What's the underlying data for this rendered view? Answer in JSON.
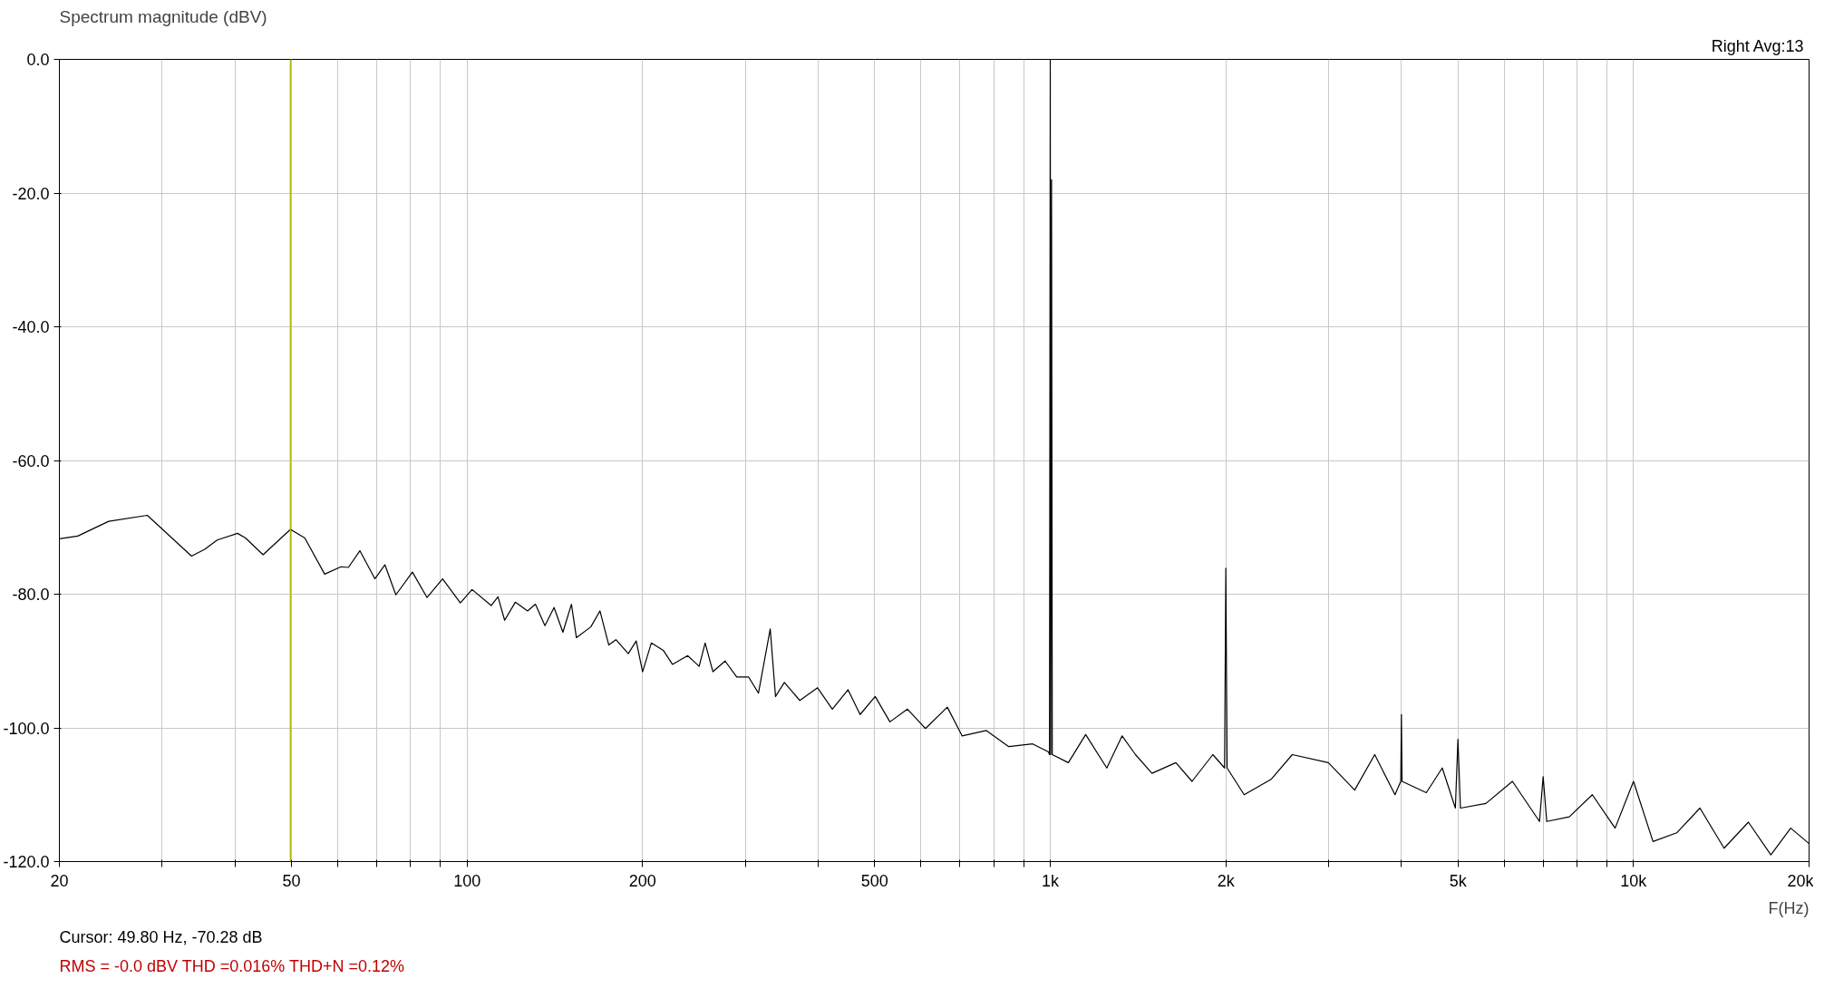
{
  "chart_data": {
    "type": "line",
    "title": "Spectrum magnitude (dBV)",
    "xlabel": "F(Hz)",
    "annotations": [
      "Right  Avg:13",
      "Cursor: 49.80 Hz, -70.28 dB",
      "RMS =   -0.0 dBV  THD =0.016%  THD+N =0.12%"
    ],
    "log": "x",
    "grid": true,
    "marker": "none",
    "line_style": "solid",
    "xlim": [
      20,
      20000
    ],
    "ylim": [
      -120,
      0
    ],
    "xticks": [
      20,
      {
        "value": 30,
        "label": null
      },
      {
        "value": 40,
        "label": null
      },
      50,
      {
        "value": 60,
        "label": null
      },
      {
        "value": 70,
        "label": null
      },
      {
        "value": 80,
        "label": null
      },
      {
        "value": 90,
        "label": null
      },
      100,
      200,
      {
        "value": 300,
        "label": null
      },
      {
        "value": 400,
        "label": null
      },
      500,
      {
        "value": 600,
        "label": null
      },
      {
        "value": 700,
        "label": null
      },
      {
        "value": 800,
        "label": null
      },
      {
        "value": 900,
        "label": null
      },
      {
        "value": 1000,
        "label": "1k"
      },
      {
        "value": 2000,
        "label": "2k"
      },
      {
        "value": 3000,
        "label": null
      },
      {
        "value": 4000,
        "label": null
      },
      {
        "value": 5000,
        "label": "5k"
      },
      {
        "value": 6000,
        "label": null
      },
      {
        "value": 7000,
        "label": null
      },
      {
        "value": 8000,
        "label": null
      },
      {
        "value": 9000,
        "label": null
      },
      {
        "value": 10000,
        "label": "10k"
      },
      {
        "value": 20000,
        "label": "20k"
      }
    ],
    "yticks": [
      {
        "value": 0,
        "label": "0.0"
      },
      {
        "value": -20,
        "label": "-20.0"
      },
      {
        "value": -40,
        "label": "-40.0"
      },
      {
        "value": -60,
        "label": "-60.0"
      },
      {
        "value": -80,
        "label": "-80.0"
      },
      {
        "value": -100,
        "label": "-100.0"
      },
      {
        "value": -120,
        "label": "-120.0"
      }
    ],
    "ref_lines": [
      {
        "axis": "x",
        "value": 49.8,
        "label": null,
        "color": "#b5b800"
      }
    ],
    "series": [
      {
        "color": "#000000",
        "x": [
          20,
          21.5,
          24.3,
          28.3,
          33.7,
          35.5,
          37.3,
          40.4,
          41.7,
          44.7,
          49.8,
          52.7,
          57,
          60.8,
          62.6,
          65.5,
          69.5,
          72.3,
          75.5,
          80.6,
          85.4,
          90.8,
          97.4,
          102,
          110,
          113,
          116,
          121,
          127,
          131,
          136,
          141,
          146,
          151,
          154,
          163,
          169,
          175,
          180,
          189,
          195,
          200,
          207,
          217,
          225,
          239,
          250,
          256,
          264,
          277,
          290,
          304,
          316,
          331,
          338,
          350,
          372,
          399,
          423,
          450,
          472,
          501,
          531,
          569,
          611,
          666,
          706,
          777,
          849,
          933,
          993,
          997,
          1000,
          1002,
          1005,
          1008,
          1074,
          1150,
          1250,
          1328,
          1400,
          1494,
          1642,
          1750,
          1900,
          1990,
          2000,
          2010,
          2150,
          2391,
          2600,
          2998,
          3326,
          3600,
          3900,
          3990,
          4000,
          4010,
          4413,
          4700,
          4950,
          5000,
          5050,
          5584,
          6200,
          6900,
          7000,
          7100,
          7761,
          8500,
          9300,
          10000,
          10800,
          11860,
          13000,
          14300,
          15740,
          17200,
          18600,
          20000
        ],
        "values": [
          -71.7,
          -71.3,
          -69.1,
          -68.2,
          -74.3,
          -73.3,
          -71.9,
          -70.9,
          -71.6,
          -74.1,
          -70.3,
          -71.6,
          -77,
          -75.9,
          -76,
          -73.5,
          -77.7,
          -75.6,
          -80.1,
          -76.7,
          -80.5,
          -77.7,
          -81.3,
          -79.3,
          -81.7,
          -80.4,
          -83.9,
          -81.2,
          -82.5,
          -81.5,
          -84.7,
          -82,
          -85.7,
          -81.5,
          -86.5,
          -84.9,
          -82.5,
          -87.6,
          -86.8,
          -88.9,
          -87,
          -91.6,
          -87.3,
          -88.4,
          -90.5,
          -89.2,
          -90.8,
          -87.3,
          -91.6,
          -90,
          -92.4,
          -92.4,
          -94.8,
          -85.2,
          -95.3,
          -93.2,
          -95.9,
          -94,
          -97.2,
          -94.3,
          -98,
          -95.3,
          -99.1,
          -97.2,
          -100.1,
          -96.9,
          -101.2,
          -100.4,
          -102.8,
          -102.4,
          -103.6,
          -104,
          0,
          -104,
          -18,
          -104,
          -105.2,
          -101,
          -106,
          -101.2,
          -104,
          -106.8,
          -105.2,
          -108,
          -104,
          -106,
          -76.1,
          -106,
          -110,
          -107.7,
          -104,
          -105.2,
          -109.3,
          -104,
          -110,
          -108,
          -98,
          -108,
          -109.7,
          -106,
          -112,
          -101.7,
          -112,
          -111.3,
          -108,
          -114,
          -107.3,
          -114,
          -113.3,
          -110,
          -115,
          -108,
          -117,
          -115.7,
          -112,
          -118,
          -114.1,
          -119,
          -115,
          -117.3
        ]
      }
    ]
  }
}
